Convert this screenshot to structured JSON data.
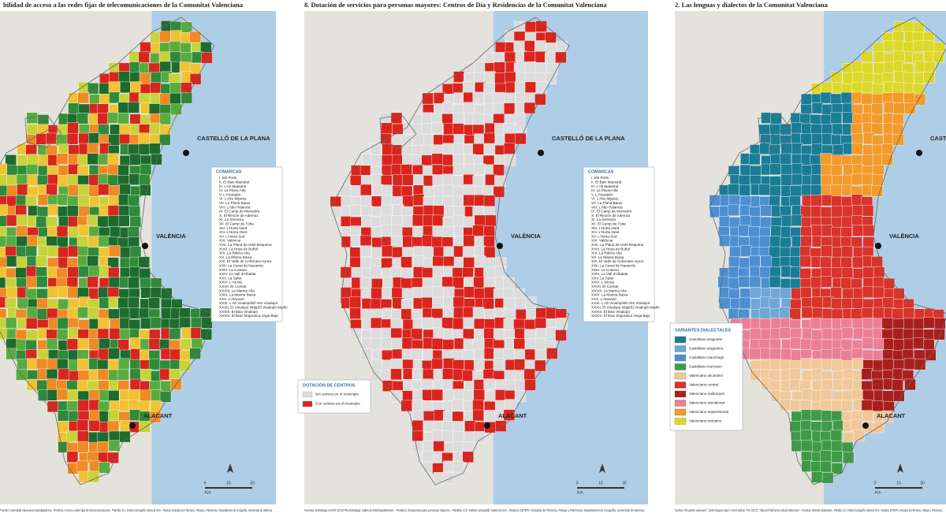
{
  "panels": [
    {
      "title": "bilidad de acceso a las redes fijas de telecomunicaciones de la Comunitat Valenciana",
      "cities": [
        "CASTELLÓ DE LA PLANA",
        "VALÈNCIA",
        "ALACANT"
      ],
      "legend_title": "COMARCAS",
      "source": "Fuentes: Generalitat Valenciana Avantdigitalment - Temàtica: Acceso a redes fijas de telecomunicaciones - Plantilla: ICV. Institut Cartogràfic Valencià GVA - Realiza: Estudios del Territorio, Paisaje y Patrimonio. Departament de Geografia. Universitat de València."
    },
    {
      "title": "8. Dotación de servicios para personas mayores: Centros de Día y Residencias de la Comunitat Valenciana",
      "cities": [
        "CASTELLÓ DE LA PLANA",
        "VALÈNCIA",
        "ALACANT"
      ],
      "legend_title": "COMARCAS",
      "legend": {
        "title": "DOTACIÓN DE CENTROS",
        "items": [
          "Sin centros en el municipio",
          "Con centros en el municipio"
        ]
      },
      "source": "Fuentes: Estrategia AVANT 20-30 Pla Estratègic Valencià Antidespoblament - Temàtica: Dotaciones para personas mayores - Plantilla: ICV. Institut Cartogràfic Valencià GVA - Realiza: ESTEPA. Estudios del Territorio, Paisaje y Patrimonio. Departament de Geografia. Universitat de València."
    },
    {
      "title": "2. Las lenguas y dialectos de la Comunitat Valenciana",
      "cities": [
        "CASTELLÓ DE LA PLANA",
        "VALÈNCIA",
        "ALACANT"
      ],
      "legend": {
        "title": "VARIANTES DIALECTALES",
        "items": [
          "Castellano aragonés",
          "Castellano enguerino",
          "Castellano manchego",
          "Castellano murciano",
          "Valenciano alicantino",
          "Valenciano central",
          "Valenciano mallorquín",
          "Valenciano meridional",
          "Valenciano septentrional",
          "Valenciano tortosino"
        ]
      },
      "source": "Fuentes: \"Els parlars valencians\", Carles Segura-Llopes i Vicent Beltran, PUV (2017); \"Atlas del Patrimonio Cultural Valenciano\" - Temàtica: Variantes dialectales - Plantilla: ICV. Institut Cartogràfic Valencià GVA - Realiza: ESTEPA. Estudios del Territorio, Paisaje y Patrimonio."
    }
  ],
  "comarcas": [
    "I. Els Ports",
    "II. El Baix Maestrat",
    "III. L'Alt Maestrat",
    "IV. La Plana Alta",
    "V. L'Alcalatén",
    "VI. L'Alto Mijares",
    "VII. La Plana Baixa",
    "VIII. L'Alto Palancia",
    "IX. El Camp de Morvedre",
    "X. El Rincón de Ademuz",
    "XI. La Serranía",
    "XII. El Camp de Túria",
    "XIII. L'Horta Nord",
    "XIV. L'Horta Oest",
    "XV. L'Horta Sud",
    "XVI. València",
    "XVII. La Plana de Utiel-Requena",
    "XVIII. La Hoya de Buñol",
    "XIX. La Ribera Alta",
    "XX. La Ribera Baixa",
    "XXI. El Valle de Cofrentes-Ayora",
    "XXII. La Canal de Navarrés",
    "XXIII. La Costera",
    "XXIV. La Vall d'Albaida",
    "XXV. La Safor",
    "XXVI. L'Alcoià",
    "XXVII. El Comtat",
    "XXVIII. La Marina Alta",
    "XXIX. La Marina Baixa",
    "XXX. L'Alacantí",
    "XXXI. L'Alt Vinalopó/El Alto Vinalopó",
    "XXXII. El Vinalopó Mitjà/El Vinalopó Medio",
    "XXXIII. El Baix Vinalopó",
    "XXXIV. El Baix Segura/La Vega Baja"
  ],
  "scale": {
    "labels": [
      "0",
      "15",
      "30"
    ],
    "unit": "Km"
  }
}
